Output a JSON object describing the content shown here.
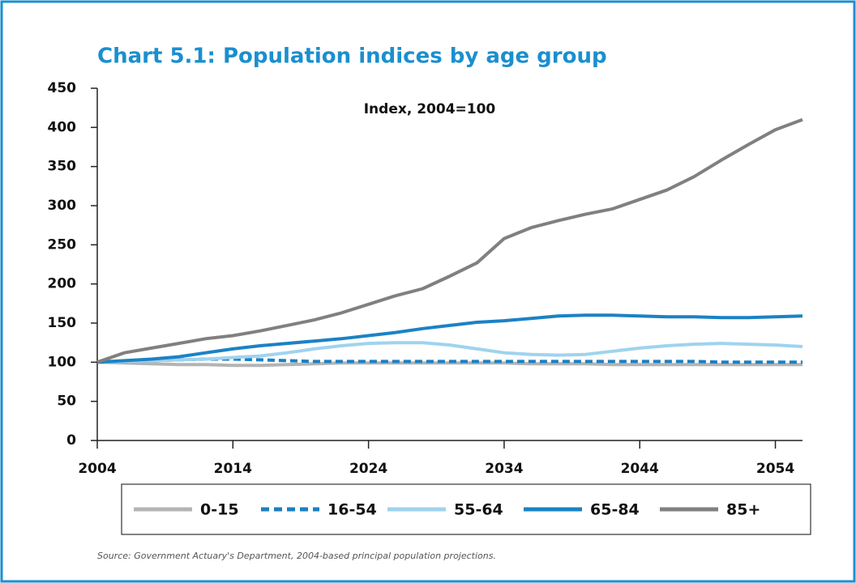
{
  "chart_data": {
    "type": "line",
    "title": "Chart 5.1: Population indices by age group",
    "annotation": "Index, 2004=100",
    "source": "Source: Government Actuary's Department, 2004-based principal population projections.",
    "x": [
      2004,
      2006,
      2008,
      2010,
      2012,
      2014,
      2016,
      2018,
      2020,
      2022,
      2024,
      2026,
      2028,
      2030,
      2032,
      2034,
      2036,
      2038,
      2040,
      2042,
      2044,
      2046,
      2048,
      2050,
      2052,
      2054,
      2056
    ],
    "xlim": [
      2004,
      2056
    ],
    "xticks": [
      2004,
      2014,
      2024,
      2034,
      2044,
      2054
    ],
    "ylim": [
      0,
      450
    ],
    "yticks": [
      0,
      50,
      100,
      150,
      200,
      250,
      300,
      350,
      400,
      450
    ],
    "grid": false,
    "series": [
      {
        "name": "0-15",
        "color": "#b4b4b4",
        "dashed": false,
        "values": [
          100,
          99,
          98,
          97,
          97,
          96,
          96,
          97,
          98,
          99,
          99,
          99,
          99,
          99,
          99,
          99,
          98,
          98,
          98,
          97,
          97,
          97,
          97,
          97,
          97,
          97,
          97
        ]
      },
      {
        "name": "16-54",
        "color": "#1b80c2",
        "dashed": true,
        "values": [
          100,
          101,
          102,
          103,
          104,
          104,
          103,
          102,
          101,
          101,
          101,
          101,
          101,
          101,
          101,
          101,
          101,
          101,
          101,
          101,
          101,
          101,
          101,
          100,
          100,
          100,
          100
        ]
      },
      {
        "name": "55-64",
        "color": "#9fd3ee",
        "dashed": false,
        "values": [
          100,
          101,
          102,
          103,
          104,
          106,
          108,
          112,
          117,
          121,
          124,
          125,
          125,
          122,
          117,
          112,
          110,
          109,
          110,
          114,
          118,
          121,
          123,
          124,
          123,
          122,
          120
        ]
      },
      {
        "name": "65-84",
        "color": "#1b82c4",
        "dashed": false,
        "values": [
          100,
          102,
          104,
          107,
          112,
          117,
          121,
          124,
          127,
          130,
          134,
          138,
          143,
          147,
          151,
          153,
          156,
          159,
          160,
          160,
          159,
          158,
          158,
          157,
          157,
          158,
          159
        ]
      },
      {
        "name": "85+",
        "color": "#808080",
        "dashed": false,
        "values": [
          100,
          112,
          118,
          124,
          130,
          134,
          140,
          147,
          154,
          163,
          174,
          185,
          194,
          210,
          227,
          258,
          272,
          281,
          289,
          296,
          308,
          320,
          337,
          358,
          378,
          397,
          410
        ]
      }
    ]
  }
}
